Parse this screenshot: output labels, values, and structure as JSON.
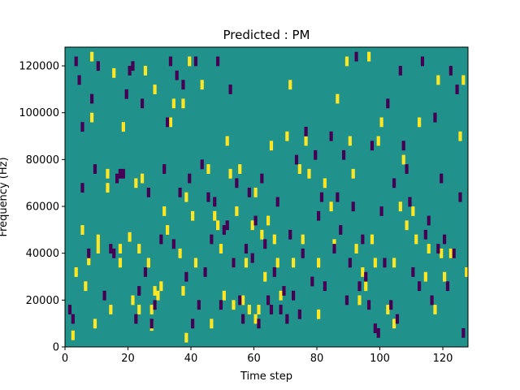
{
  "chart_data": {
    "type": "heatmap",
    "title": "Predicted : PM",
    "xlabel": "Time step",
    "ylabel": "Frequency (Hz)",
    "xlim": [
      0,
      128
    ],
    "ylim": [
      0,
      128000
    ],
    "x_ticks": [
      0,
      20,
      40,
      60,
      80,
      100,
      120
    ],
    "y_ticks": [
      0,
      20000,
      40000,
      60000,
      80000,
      100000,
      120000
    ],
    "x_tick_labels": [
      "0",
      "20",
      "40",
      "60",
      "80",
      "100",
      "120"
    ],
    "y_tick_labels": [
      "0",
      "20000",
      "40000",
      "60000",
      "80000",
      "100000",
      "120000"
    ],
    "grid": false,
    "colormap": "viridis",
    "colors": {
      "background": "#21918c",
      "high": "#fde725",
      "low": "#440154"
    },
    "background_value": 0,
    "cell_height_hz": 4000,
    "high_cells": [
      [
        2,
        3000
      ],
      [
        3,
        30000
      ],
      [
        5,
        48000
      ],
      [
        6,
        24000
      ],
      [
        7,
        35000
      ],
      [
        8,
        122000
      ],
      [
        8,
        96000
      ],
      [
        9,
        8000
      ],
      [
        10,
        44000
      ],
      [
        10,
        40000
      ],
      [
        13,
        72000
      ],
      [
        13,
        66000
      ],
      [
        14,
        14000
      ],
      [
        15,
        115000
      ],
      [
        17,
        40000
      ],
      [
        17,
        34000
      ],
      [
        18,
        92000
      ],
      [
        20,
        45000
      ],
      [
        21,
        18000
      ],
      [
        22,
        68000
      ],
      [
        23,
        40000
      ],
      [
        23,
        14000
      ],
      [
        24,
        70000
      ],
      [
        25,
        116000
      ],
      [
        26,
        34000
      ],
      [
        27,
        14000
      ],
      [
        27,
        7000
      ],
      [
        28,
        22000
      ],
      [
        28,
        108000
      ],
      [
        29,
        20000
      ],
      [
        30,
        24000
      ],
      [
        31,
        56000
      ],
      [
        32,
        48000
      ],
      [
        33,
        94000
      ],
      [
        34,
        102000
      ],
      [
        36,
        38000
      ],
      [
        37,
        102000
      ],
      [
        37,
        22000
      ],
      [
        38,
        62000
      ],
      [
        38,
        2000
      ],
      [
        39,
        120000
      ],
      [
        40,
        54000
      ],
      [
        41,
        34000
      ],
      [
        43,
        110000
      ],
      [
        45,
        74000
      ],
      [
        46,
        8000
      ],
      [
        47,
        54000
      ],
      [
        48,
        50000
      ],
      [
        49,
        40000
      ],
      [
        50,
        20000
      ],
      [
        51,
        86000
      ],
      [
        52,
        72000
      ],
      [
        53,
        34000
      ],
      [
        53,
        16000
      ],
      [
        54,
        56000
      ],
      [
        55,
        74000
      ],
      [
        56,
        18000
      ],
      [
        57,
        34000
      ],
      [
        58,
        14000
      ],
      [
        59,
        50000
      ],
      [
        60,
        64000
      ],
      [
        60,
        10000
      ],
      [
        61,
        14000
      ],
      [
        62,
        46000
      ],
      [
        63,
        28000
      ],
      [
        64,
        52000
      ],
      [
        65,
        84000
      ],
      [
        66,
        44000
      ],
      [
        67,
        34000
      ],
      [
        68,
        20000
      ],
      [
        70,
        88000
      ],
      [
        71,
        110000
      ],
      [
        72,
        34000
      ],
      [
        74,
        74000
      ],
      [
        75,
        44000
      ],
      [
        76,
        86000
      ],
      [
        77,
        72000
      ],
      [
        80,
        34000
      ],
      [
        80,
        12000
      ],
      [
        82,
        68000
      ],
      [
        84,
        58000
      ],
      [
        85,
        42000
      ],
      [
        86,
        104000
      ],
      [
        89,
        120000
      ],
      [
        90,
        86000
      ],
      [
        91,
        72000
      ],
      [
        92,
        40000
      ],
      [
        93,
        18000
      ],
      [
        94,
        30000
      ],
      [
        95,
        24000
      ],
      [
        96,
        122000
      ],
      [
        97,
        44000
      ],
      [
        98,
        34000
      ],
      [
        99,
        86000
      ],
      [
        100,
        94000
      ],
      [
        102,
        14000
      ],
      [
        104,
        34000
      ],
      [
        104,
        8000
      ],
      [
        106,
        58000
      ],
      [
        107,
        78000
      ],
      [
        108,
        50000
      ],
      [
        110,
        56000
      ],
      [
        111,
        44000
      ],
      [
        112,
        94000
      ],
      [
        114,
        28000
      ],
      [
        115,
        40000
      ],
      [
        117,
        14000
      ],
      [
        118,
        112000
      ],
      [
        119,
        38000
      ],
      [
        120,
        28000
      ],
      [
        122,
        38000
      ],
      [
        125,
        88000
      ],
      [
        126,
        112000
      ],
      [
        127,
        30000
      ]
    ],
    "low_cells": [
      [
        1,
        14000
      ],
      [
        2,
        10000
      ],
      [
        3,
        120000
      ],
      [
        4,
        112000
      ],
      [
        5,
        66000
      ],
      [
        5,
        92000
      ],
      [
        7,
        38000
      ],
      [
        8,
        104000
      ],
      [
        9,
        74000
      ],
      [
        10,
        118000
      ],
      [
        12,
        20000
      ],
      [
        14,
        40000
      ],
      [
        15,
        38000
      ],
      [
        16,
        70000
      ],
      [
        17,
        72000
      ],
      [
        18,
        72000
      ],
      [
        19,
        106000
      ],
      [
        20,
        116000
      ],
      [
        21,
        118000
      ],
      [
        22,
        10000
      ],
      [
        23,
        22000
      ],
      [
        24,
        102000
      ],
      [
        25,
        30000
      ],
      [
        26,
        64000
      ],
      [
        27,
        8000
      ],
      [
        28,
        16000
      ],
      [
        30,
        44000
      ],
      [
        31,
        74000
      ],
      [
        32,
        94000
      ],
      [
        33,
        120000
      ],
      [
        34,
        42000
      ],
      [
        35,
        114000
      ],
      [
        36,
        64000
      ],
      [
        37,
        110000
      ],
      [
        38,
        28000
      ],
      [
        39,
        70000
      ],
      [
        40,
        8000
      ],
      [
        41,
        120000
      ],
      [
        42,
        16000
      ],
      [
        43,
        76000
      ],
      [
        44,
        30000
      ],
      [
        45,
        62000
      ],
      [
        46,
        44000
      ],
      [
        47,
        60000
      ],
      [
        48,
        120000
      ],
      [
        49,
        16000
      ],
      [
        50,
        48000
      ],
      [
        51,
        50000
      ],
      [
        52,
        108000
      ],
      [
        53,
        34000
      ],
      [
        54,
        68000
      ],
      [
        55,
        18000
      ],
      [
        56,
        10000
      ],
      [
        57,
        40000
      ],
      [
        58,
        64000
      ],
      [
        59,
        36000
      ],
      [
        60,
        52000
      ],
      [
        61,
        8000
      ],
      [
        62,
        70000
      ],
      [
        63,
        42000
      ],
      [
        64,
        18000
      ],
      [
        65,
        14000
      ],
      [
        66,
        30000
      ],
      [
        67,
        60000
      ],
      [
        68,
        14000
      ],
      [
        69,
        22000
      ],
      [
        70,
        10000
      ],
      [
        71,
        46000
      ],
      [
        72,
        20000
      ],
      [
        73,
        78000
      ],
      [
        74,
        12000
      ],
      [
        75,
        38000
      ],
      [
        76,
        90000
      ],
      [
        78,
        26000
      ],
      [
        79,
        80000
      ],
      [
        80,
        54000
      ],
      [
        81,
        62000
      ],
      [
        82,
        24000
      ],
      [
        84,
        88000
      ],
      [
        85,
        40000
      ],
      [
        86,
        62000
      ],
      [
        87,
        48000
      ],
      [
        88,
        80000
      ],
      [
        89,
        18000
      ],
      [
        90,
        34000
      ],
      [
        91,
        58000
      ],
      [
        92,
        122000
      ],
      [
        93,
        24000
      ],
      [
        94,
        44000
      ],
      [
        95,
        28000
      ],
      [
        96,
        16000
      ],
      [
        97,
        84000
      ],
      [
        98,
        6000
      ],
      [
        99,
        4000
      ],
      [
        100,
        56000
      ],
      [
        101,
        34000
      ],
      [
        102,
        102000
      ],
      [
        103,
        16000
      ],
      [
        104,
        68000
      ],
      [
        105,
        10000
      ],
      [
        106,
        116000
      ],
      [
        107,
        84000
      ],
      [
        108,
        74000
      ],
      [
        109,
        60000
      ],
      [
        110,
        30000
      ],
      [
        112,
        24000
      ],
      [
        113,
        120000
      ],
      [
        114,
        46000
      ],
      [
        115,
        52000
      ],
      [
        116,
        18000
      ],
      [
        117,
        96000
      ],
      [
        118,
        40000
      ],
      [
        119,
        70000
      ],
      [
        120,
        44000
      ],
      [
        121,
        24000
      ],
      [
        122,
        116000
      ],
      [
        123,
        38000
      ],
      [
        124,
        108000
      ],
      [
        125,
        62000
      ],
      [
        126,
        4000
      ]
    ]
  }
}
